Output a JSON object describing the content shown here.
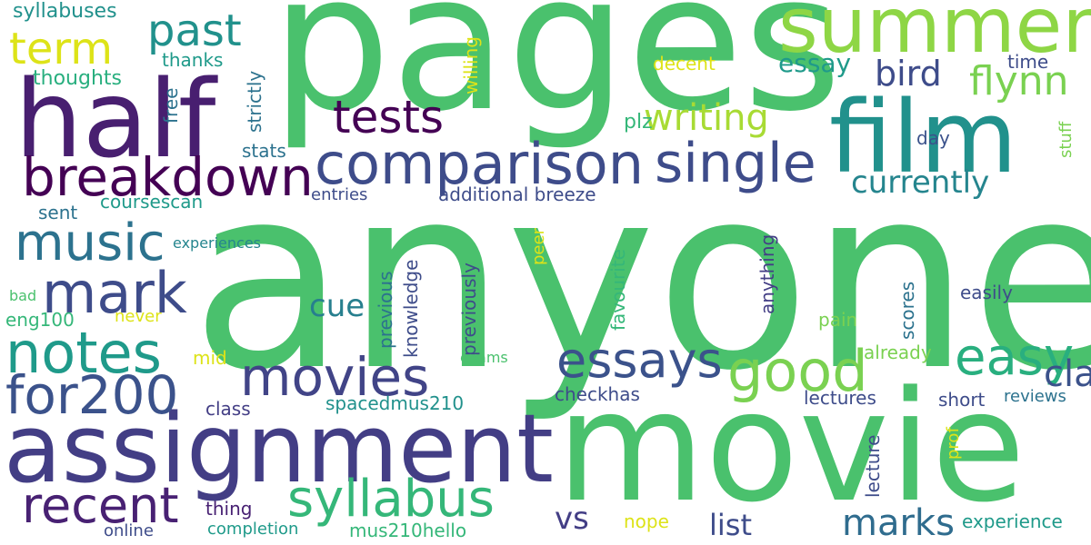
{
  "words": {
    "anyone": {
      "text": "anyone",
      "color": "#4ac16d"
    },
    "pages": {
      "text": "pages",
      "color": "#4ac16d"
    },
    "movie": {
      "text": "movie",
      "color": "#4ac16d"
    },
    "assignment": {
      "text": "assignment",
      "color": "#433e85"
    },
    "half": {
      "text": "half",
      "color": "#481f70"
    },
    "film": {
      "text": "film",
      "color": "#21918c"
    },
    "summer": {
      "text": "summer",
      "color": "#8ed645"
    },
    "comparison": {
      "text": "comparison",
      "color": "#3e4c8a"
    },
    "breakdown": {
      "text": "breakdown",
      "color": "#440154"
    },
    "single": {
      "text": "single",
      "color": "#3e4c8a"
    },
    "notes": {
      "text": "notes",
      "color": "#1f9a8a"
    },
    "movies": {
      "text": "movies",
      "color": "#414487"
    },
    "for200": {
      "text": "for200",
      "color": "#3b528b"
    },
    "recent": {
      "text": "recent",
      "color": "#482173"
    },
    "syllabus": {
      "text": "syllabus",
      "color": "#35b779"
    },
    "good": {
      "text": "good",
      "color": "#7ad151"
    },
    "essays": {
      "text": "essays",
      "color": "#3b528b"
    },
    "mark": {
      "text": "mark",
      "color": "#3e4c8a"
    },
    "music": {
      "text": "music",
      "color": "#2c728e"
    },
    "tests": {
      "text": "tests",
      "color": "#440154"
    },
    "term": {
      "text": "term",
      "color": "#dde318"
    },
    "past": {
      "text": "past",
      "color": "#21918c"
    },
    "easy": {
      "text": "easy",
      "color": "#29af7f"
    },
    "marks": {
      "text": "marks",
      "color": "#2f6c8e"
    },
    "flynn": {
      "text": "flynn",
      "color": "#7ad151"
    },
    "writing": {
      "text": "writing",
      "color": "#a8db34"
    },
    "classes": {
      "text": "classes",
      "color": "#3b528b"
    },
    "bird": {
      "text": "bird",
      "color": "#3e4c8a"
    },
    "currently": {
      "text": "currently",
      "color": "#25858e"
    },
    "essay": {
      "text": "essay",
      "color": "#1f9a8a"
    },
    "list": {
      "text": "list",
      "color": "#3e4c8a"
    },
    "vs": {
      "text": "vs",
      "color": "#433e85"
    },
    "cue": {
      "text": "cue",
      "color": "#277f8e"
    },
    "syllabuses": {
      "text": "syllabuses",
      "color": "#21918c"
    },
    "thoughts": {
      "text": "thoughts",
      "color": "#29af7f"
    },
    "thanks": {
      "text": "thanks",
      "color": "#1f9a8a"
    },
    "free": {
      "text": "free",
      "color": "#2c728e"
    },
    "strictly": {
      "text": "strictly",
      "color": "#2c728e"
    },
    "willing": {
      "text": "willing",
      "color": "#dde318"
    },
    "decent": {
      "text": "decent",
      "color": "#dde318"
    },
    "time": {
      "text": "time",
      "color": "#3e4c8a"
    },
    "stuff": {
      "text": "stuff",
      "color": "#7ad151"
    },
    "plz": {
      "text": "plz",
      "color": "#35b779"
    },
    "day": {
      "text": "day",
      "color": "#3b528b"
    },
    "stats": {
      "text": "stats",
      "color": "#2c728e"
    },
    "entries": {
      "text": "entries",
      "color": "#3e4c8a"
    },
    "additional_breeze": {
      "text": "additional breeze",
      "color": "#3e4c8a"
    },
    "coursescan": {
      "text": "coursescan",
      "color": "#1f9a8a"
    },
    "sent": {
      "text": "sent",
      "color": "#2c728e"
    },
    "experiences": {
      "text": "experiences",
      "color": "#25858e"
    },
    "peer": {
      "text": "peer",
      "color": "#dde318"
    },
    "favourite": {
      "text": "favourite",
      "color": "#35b779"
    },
    "previous": {
      "text": "previous",
      "color": "#2c728e"
    },
    "knowledge": {
      "text": "knowledge",
      "color": "#3e4c8a"
    },
    "previously": {
      "text": "previously",
      "color": "#3e4c8a"
    },
    "anything": {
      "text": "anything",
      "color": "#433e85"
    },
    "scores": {
      "text": "scores",
      "color": "#2c728e"
    },
    "easily": {
      "text": "easily",
      "color": "#3e4c8a"
    },
    "bad": {
      "text": "bad",
      "color": "#4ac16d"
    },
    "eng100": {
      "text": "eng100",
      "color": "#35b779"
    },
    "never": {
      "text": "never",
      "color": "#dde318"
    },
    "pain": {
      "text": "pain",
      "color": "#7ad151"
    },
    "mid": {
      "text": "mid",
      "color": "#dde318"
    },
    "exams": {
      "text": "exams",
      "color": "#4ac16d"
    },
    "already": {
      "text": "already",
      "color": "#7ad151"
    },
    "class": {
      "text": "class",
      "color": "#433e85"
    },
    "spacedmus210": {
      "text": "spacedmus210",
      "color": "#21918c"
    },
    "checkhas": {
      "text": "checkhas",
      "color": "#3e4c8a"
    },
    "lectures": {
      "text": "lectures",
      "color": "#3e4c8a"
    },
    "short": {
      "text": "short",
      "color": "#3e4c8a"
    },
    "reviews": {
      "text": "reviews",
      "color": "#2c728e"
    },
    "prof": {
      "text": "prof",
      "color": "#dde318"
    },
    "lecture": {
      "text": "lecture",
      "color": "#3e4c8a"
    },
    "thing": {
      "text": "thing",
      "color": "#482173"
    },
    "online": {
      "text": "online",
      "color": "#3e4c8a"
    },
    "completion": {
      "text": "completion",
      "color": "#1f9a8a"
    },
    "mus210hello": {
      "text": "mus210hello",
      "color": "#35b779"
    },
    "nope": {
      "text": "nope",
      "color": "#dde318"
    },
    "experience": {
      "text": "experience",
      "color": "#1f9a8a"
    }
  }
}
